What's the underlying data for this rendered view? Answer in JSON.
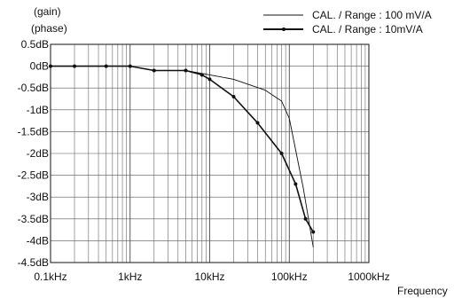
{
  "chart_data": {
    "type": "line",
    "ylabel_lines": [
      "(gain)",
      "(phase)"
    ],
    "xlabel": "Frequency",
    "x_scale": "log",
    "xlim": [
      100,
      1000000
    ],
    "ylim": [
      -4.5,
      0.5
    ],
    "grid": true,
    "legend_position": "top-right",
    "x_ticks": [
      {
        "value": 100,
        "label": "0.1kHz"
      },
      {
        "value": 1000,
        "label": "1kHz"
      },
      {
        "value": 10000,
        "label": "10kHz"
      },
      {
        "value": 100000,
        "label": "100kHz"
      },
      {
        "value": 1000000,
        "label": "1000kHz"
      }
    ],
    "y_ticks": [
      {
        "value": 0.5,
        "label": "0.5dB"
      },
      {
        "value": 0,
        "label": "0dB"
      },
      {
        "value": -0.5,
        "label": "-0.5dB"
      },
      {
        "value": -1,
        "label": "-1dB"
      },
      {
        "value": -1.5,
        "label": "-1.5dB"
      },
      {
        "value": -2,
        "label": "-2dB"
      },
      {
        "value": -2.5,
        "label": "-2.5dB"
      },
      {
        "value": -3,
        "label": "-3dB"
      },
      {
        "value": -3.5,
        "label": "-3.5dB"
      },
      {
        "value": -4,
        "label": "-4dB"
      },
      {
        "value": -4.5,
        "label": "-4.5dB"
      }
    ],
    "series": [
      {
        "name": "CAL. / Range : 100 mV/A",
        "markers": false,
        "x": [
          100,
          200,
          500,
          1000,
          2000,
          5000,
          10000,
          20000,
          50000,
          80000,
          100000,
          150000,
          200000
        ],
        "y": [
          0,
          0,
          0,
          0,
          -0.1,
          -0.1,
          -0.2,
          -0.3,
          -0.55,
          -0.8,
          -1.2,
          -2.8,
          -4.15
        ]
      },
      {
        "name": "CAL. / Range : 10mV/A",
        "markers": true,
        "x": [
          100,
          200,
          500,
          1000,
          2000,
          5000,
          8000,
          10000,
          20000,
          40000,
          80000,
          120000,
          160000,
          200000
        ],
        "y": [
          0,
          0,
          0,
          0,
          -0.1,
          -0.1,
          -0.2,
          -0.3,
          -0.7,
          -1.3,
          -2.0,
          -2.7,
          -3.5,
          -3.8
        ]
      }
    ]
  }
}
